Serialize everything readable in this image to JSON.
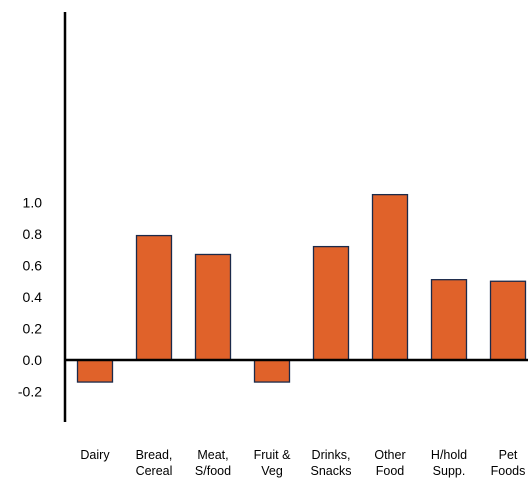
{
  "chart_data": {
    "type": "bar",
    "title": "",
    "xlabel": "",
    "ylabel": "",
    "categories": [
      [
        "Dairy"
      ],
      [
        "Bread,",
        "Cereal"
      ],
      [
        "Meat,",
        "S/food"
      ],
      [
        "Fruit &",
        "Veg"
      ],
      [
        "Drinks,",
        "Snacks"
      ],
      [
        "Other",
        "Food"
      ],
      [
        "H/hold",
        "Supp."
      ],
      [
        "Pet",
        "Foods"
      ]
    ],
    "values": [
      -0.14,
      0.79,
      0.67,
      -0.14,
      0.72,
      1.05,
      0.51,
      0.5
    ],
    "ylim": [
      -0.2,
      1.1
    ],
    "yticks": [
      "-0.2",
      "0.0",
      "0.2",
      "0.4",
      "0.6",
      "0.8",
      "1.0"
    ],
    "grid": false,
    "legend": "none",
    "colors": {
      "bar_fill": "#E0622A",
      "bar_stroke": "#1B2A4A",
      "axis": "#000000"
    }
  }
}
